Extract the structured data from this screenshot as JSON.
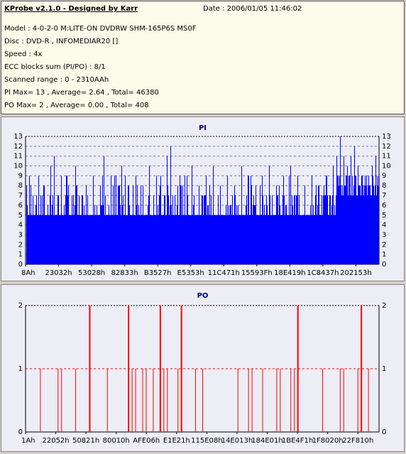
{
  "header": {
    "title": "KProbe v2.1.0 - Designed by Karr",
    "date": "Date : 2006/01/05 11:46:02",
    "model": "Model : 4-0-2-0 M:LITE-ON DVDRW SHM-165P6S MS0F",
    "disc": "Disc : DVD-R , INFOMEDIAR20 []",
    "speed": "Speed : 4x",
    "ecc": "ECC blocks sum (PI/PO) : 8/1",
    "range": "Scanned range : 0 - 2310AAh",
    "pi": "PI Max= 13 , Average= 2.64 , Total= 46380",
    "po": "PO Max= 2 , Average= 0.00 , Total= 408"
  },
  "colors": {
    "pi": "#0000ff",
    "po": "#ff0000",
    "grid": "#ff0000",
    "background": "#ecedf5",
    "axis_title": "#000080"
  },
  "chart_data": [
    {
      "type": "bar",
      "title": "PI",
      "ylim": [
        0,
        13
      ],
      "yticks": [
        0,
        1,
        2,
        3,
        4,
        5,
        6,
        7,
        8,
        9,
        10,
        11,
        12,
        13
      ],
      "xticks": [
        "8Ah",
        "23032h",
        "53028h",
        "82833h",
        "B3527h",
        "E5353h",
        "11C471h",
        "15593Fh",
        "18E419h",
        "1C8437h",
        "202153h"
      ],
      "grid": true,
      "baseline": 5,
      "peaks": [
        [
          0.0,
          8
        ],
        [
          0.01,
          9
        ],
        [
          0.03,
          7
        ],
        [
          0.05,
          8
        ],
        [
          0.07,
          10
        ],
        [
          0.08,
          11
        ],
        [
          0.1,
          9
        ],
        [
          0.12,
          8
        ],
        [
          0.14,
          10
        ],
        [
          0.15,
          7
        ],
        [
          0.17,
          8
        ],
        [
          0.19,
          9
        ],
        [
          0.21,
          8
        ],
        [
          0.22,
          11
        ],
        [
          0.24,
          9
        ],
        [
          0.26,
          8
        ],
        [
          0.27,
          10
        ],
        [
          0.29,
          8
        ],
        [
          0.31,
          9
        ],
        [
          0.33,
          8
        ],
        [
          0.35,
          10
        ],
        [
          0.37,
          9
        ],
        [
          0.38,
          8
        ],
        [
          0.4,
          11
        ],
        [
          0.41,
          12
        ],
        [
          0.43,
          8
        ],
        [
          0.45,
          9
        ],
        [
          0.47,
          10
        ],
        [
          0.49,
          8
        ],
        [
          0.51,
          9
        ],
        [
          0.53,
          10
        ],
        [
          0.55,
          8
        ],
        [
          0.57,
          9
        ],
        [
          0.59,
          8
        ],
        [
          0.61,
          10
        ],
        [
          0.63,
          9
        ],
        [
          0.65,
          8
        ],
        [
          0.67,
          9
        ],
        [
          0.69,
          10
        ],
        [
          0.71,
          8
        ],
        [
          0.73,
          9
        ],
        [
          0.75,
          10
        ],
        [
          0.77,
          9
        ],
        [
          0.79,
          8
        ],
        [
          0.81,
          9
        ],
        [
          0.83,
          8
        ],
        [
          0.85,
          9
        ],
        [
          0.87,
          10
        ],
        [
          0.88,
          11
        ],
        [
          0.89,
          13
        ],
        [
          0.9,
          11
        ],
        [
          0.91,
          10
        ],
        [
          0.92,
          11
        ],
        [
          0.93,
          12
        ],
        [
          0.94,
          10
        ],
        [
          0.95,
          9
        ],
        [
          0.96,
          8
        ],
        [
          0.97,
          9
        ],
        [
          0.98,
          10
        ],
        [
          0.99,
          11
        ]
      ]
    },
    {
      "type": "bar",
      "title": "PO",
      "ylim": [
        0,
        2
      ],
      "yticks": [
        0,
        1,
        2
      ],
      "xticks": [
        "1Ah",
        "22052h",
        "50821h",
        "80010h",
        "AFE06h",
        "E1E21h",
        "115E08h",
        "14E013h",
        "184E01h",
        "1BE4F1h",
        "1F8020h",
        "22F810h"
      ],
      "grid": true,
      "spikes": [
        [
          0.04,
          1
        ],
        [
          0.09,
          1
        ],
        [
          0.1,
          1
        ],
        [
          0.14,
          1
        ],
        [
          0.18,
          2
        ],
        [
          0.23,
          1
        ],
        [
          0.29,
          2
        ],
        [
          0.3,
          1
        ],
        [
          0.31,
          1
        ],
        [
          0.33,
          1
        ],
        [
          0.34,
          1
        ],
        [
          0.36,
          1
        ],
        [
          0.38,
          2
        ],
        [
          0.39,
          1
        ],
        [
          0.4,
          1
        ],
        [
          0.43,
          1
        ],
        [
          0.44,
          2
        ],
        [
          0.48,
          1
        ],
        [
          0.5,
          1
        ],
        [
          0.6,
          1
        ],
        [
          0.63,
          1
        ],
        [
          0.64,
          1
        ],
        [
          0.67,
          1
        ],
        [
          0.71,
          1
        ],
        [
          0.72,
          1
        ],
        [
          0.75,
          1
        ],
        [
          0.76,
          1
        ],
        [
          0.77,
          2
        ],
        [
          0.84,
          1
        ],
        [
          0.89,
          1
        ],
        [
          0.9,
          1
        ],
        [
          0.94,
          1
        ],
        [
          0.95,
          2
        ],
        [
          0.97,
          1
        ]
      ]
    }
  ]
}
